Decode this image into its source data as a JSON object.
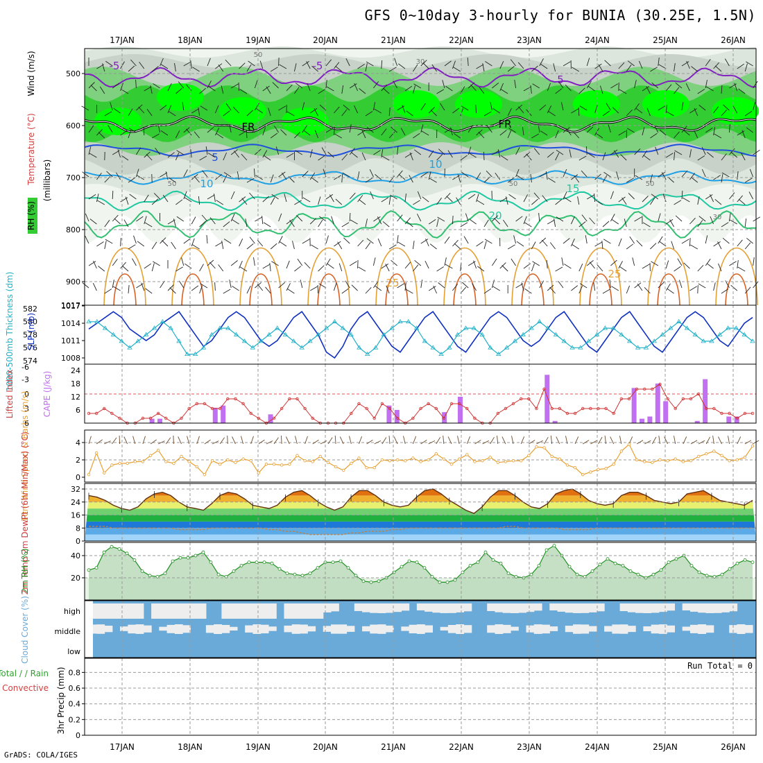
{
  "title": "GFS 0~10day 3-hourly for BUNIA (30.25E, 1.5N)",
  "credit": "GrADS: COLA/IGES",
  "run_total": "Run Total = 0",
  "colors": {
    "rh_green": "#33cc33",
    "rh_bright": "#00ff00",
    "rh_gray": "#c8d2c8",
    "temp_purple": "#8020c0",
    "temp_blue": "#1e50dc",
    "temp_cyan": "#1ea0e6",
    "temp_teal": "#1ec8a0",
    "temp_green": "#30c070",
    "temp_orange": "#e6a032",
    "slp_line": "#1030c0",
    "thickness_line": "#20b0c8",
    "cape_bar": "#c070f0",
    "lifted_line": "#d03030",
    "wind_line": "#e8a030",
    "rh2m_line": "#209020",
    "cloud_fill": "#6aaad8",
    "cloud_clear": "#eeeeee"
  },
  "chart_data": [
    {
      "type": "heatmap",
      "panel": "upper-air",
      "ylabel_parts": [
        "RH (%)",
        "Temperature (°C)",
        "Wind (m/s)",
        "(millibars)"
      ],
      "y_ticks": [
        "500",
        "600",
        "700",
        "800",
        "900",
        "1017"
      ],
      "x_dates": [
        "17JAN",
        "18JAN",
        "19JAN",
        "20JAN",
        "21JAN",
        "22JAN",
        "23JAN",
        "24JAN",
        "25JAN",
        "26JAN"
      ],
      "contour_labels": [
        "-5",
        "-5",
        "5",
        "FR",
        "FR",
        "5",
        "10",
        "10",
        "15",
        "20",
        "25",
        "25",
        "50",
        "50",
        "50",
        "30",
        "30",
        "50"
      ],
      "temperature_levels_mb": {
        "-5": [
          490,
          525
        ],
        "0": [
          590,
          605
        ],
        "5": [
          640,
          655
        ],
        "10": [
          690,
          710
        ],
        "15": [
          730,
          760
        ],
        "20": [
          780,
          800
        ],
        "25": [
          840,
          900
        ]
      }
    },
    {
      "type": "line",
      "panel": "slp-thickness",
      "ylabel_left": "1000-500mb Thickness (dm)",
      "ylabel_right": "SLP (mb)",
      "left_ticks": [
        "582",
        "580",
        "578",
        "576",
        "574"
      ],
      "right_ticks": [
        "1017",
        "1014",
        "1011",
        "1008"
      ],
      "series": [
        {
          "name": "SLP",
          "values": [
            1013,
            1014,
            1015,
            1016,
            1015,
            1013,
            1012,
            1011,
            1012,
            1014,
            1015,
            1016,
            1014,
            1012,
            1010,
            1011,
            1013,
            1015,
            1016,
            1015,
            1013,
            1011,
            1010,
            1011,
            1013,
            1015,
            1016,
            1014,
            1012,
            1009,
            1008,
            1010,
            1013,
            1015,
            1016,
            1014,
            1012,
            1010,
            1009,
            1011,
            1013,
            1015,
            1016,
            1014,
            1012,
            1010,
            1009,
            1011,
            1013,
            1015,
            1016,
            1015,
            1013,
            1011,
            1010,
            1011,
            1013,
            1015,
            1016,
            1014,
            1012,
            1010,
            1009,
            1011,
            1013,
            1015,
            1016,
            1014,
            1012,
            1010,
            1009,
            1011,
            1013,
            1015,
            1016,
            1015,
            1013,
            1011,
            1010,
            1012,
            1014,
            1015
          ]
        },
        {
          "name": "1000-500 Thickness",
          "values": [
            580,
            580,
            579,
            578,
            577,
            576,
            577,
            578,
            579,
            580,
            579,
            577,
            575,
            575,
            576,
            578,
            579,
            579,
            578,
            577,
            576,
            577,
            578,
            579,
            578,
            577,
            576,
            577,
            578,
            579,
            580,
            579,
            578,
            576,
            575,
            576,
            578,
            579,
            580,
            580,
            579,
            577,
            576,
            575,
            576,
            578,
            579,
            579,
            578,
            576,
            575,
            576,
            577,
            578,
            579,
            580,
            579,
            578,
            577,
            576,
            576,
            577,
            578,
            579,
            579,
            578,
            577,
            576,
            576,
            577,
            578,
            579,
            580,
            579,
            578,
            577,
            577,
            578,
            579,
            579,
            578,
            577
          ]
        }
      ]
    },
    {
      "type": "bar",
      "panel": "cape-lifted",
      "ylabel_left": "Lifted Index",
      "ylabel_right": "CAPE (J/kg)",
      "cape_ticks": [
        "24",
        "18",
        "12",
        "6"
      ],
      "li_ticks": [
        "-6",
        "-3",
        "0",
        "3",
        "6"
      ],
      "cape_values": [
        0,
        0,
        0,
        0,
        0,
        0,
        0,
        0,
        2,
        2,
        0,
        0,
        0,
        0,
        0,
        0,
        7,
        8,
        0,
        0,
        0,
        0,
        0,
        4,
        0,
        0,
        0,
        0,
        0,
        0,
        0,
        0,
        0,
        0,
        0,
        0,
        0,
        0,
        8,
        6,
        0,
        0,
        0,
        0,
        0,
        5,
        0,
        12,
        0,
        0,
        0,
        0,
        0,
        0,
        0,
        0,
        0,
        0,
        22,
        1,
        0,
        0,
        0,
        0,
        0,
        0,
        0,
        0,
        0,
        16,
        2,
        3,
        18,
        10,
        0,
        0,
        0,
        1,
        20,
        0,
        0,
        3,
        3,
        0,
        0
      ],
      "lifted_index_values": [
        4,
        4,
        3,
        4,
        5,
        6,
        6,
        5,
        5,
        4,
        5,
        6,
        5,
        3,
        2,
        2,
        3,
        3,
        1,
        1,
        2,
        4,
        5,
        6,
        5,
        3,
        1,
        1,
        3,
        5,
        6,
        6,
        6,
        6,
        4,
        2,
        3,
        5,
        2,
        3,
        5,
        6,
        5,
        3,
        2,
        3,
        5,
        2,
        2,
        3,
        5,
        6,
        6,
        4,
        3,
        2,
        1,
        1,
        3,
        -1,
        3,
        3,
        4,
        4,
        3,
        3,
        3,
        3,
        4,
        1,
        1,
        -1,
        -1,
        -1,
        -2,
        1,
        3,
        1,
        1,
        0,
        3,
        3,
        4,
        4,
        5,
        4,
        4
      ]
    },
    {
      "type": "line",
      "panel": "wind10m",
      "ylabel": "10m Wind Speed & Barbs (m/s)",
      "y_ticks": [
        "4",
        "2",
        "0"
      ],
      "values": [
        0.3,
        2.8,
        0.5,
        1.4,
        1.6,
        1.6,
        1.8,
        1.8,
        2.5,
        3.1,
        1.8,
        1.6,
        2.4,
        1.8,
        1.2,
        0.3,
        1.9,
        1.5,
        2.0,
        1.7,
        2.1,
        1.9,
        0.5,
        1.5,
        1.5,
        1.4,
        1.5,
        2.5,
        1.9,
        1.8,
        2.4,
        1.7,
        1.2,
        0.8,
        1.6,
        2.2,
        1.1,
        1.1,
        2.0,
        1.9,
        2.0,
        1.9,
        2.2,
        1.8,
        2.0,
        2.7,
        2.1,
        1.5,
        2.1,
        2.6,
        1.8,
        1.9,
        2.3,
        1.7,
        1.8,
        1.9,
        1.9,
        2.5,
        3.5,
        3.4,
        2.4,
        2.1,
        1.4,
        1.1,
        0.3,
        0.6,
        0.9,
        1.0,
        1.5,
        3.0,
        3.8,
        2.0,
        1.8,
        1.7,
        2.0,
        1.9,
        2.1,
        1.8,
        1.9,
        2.4,
        2.7,
        3.0,
        2.5,
        1.9,
        2.0,
        2.3,
        3.6
      ]
    },
    {
      "type": "area",
      "panel": "temp2m",
      "ylabel": "2m Temp 2m DewPt (6hr Min/Max) (°C)",
      "y_ticks": [
        "32",
        "24",
        "16",
        "8",
        "0"
      ],
      "series": [
        {
          "name": "Temp",
          "values": [
            28,
            27,
            25,
            22,
            20,
            19,
            21,
            26,
            29,
            30,
            28,
            24,
            21,
            20,
            19,
            23,
            28,
            30,
            29,
            26,
            22,
            21,
            20,
            22,
            27,
            30,
            31,
            28,
            24,
            21,
            19,
            21,
            27,
            31,
            31,
            28,
            24,
            22,
            21,
            22,
            27,
            31,
            32,
            29,
            25,
            22,
            19,
            17,
            21,
            27,
            31,
            31,
            28,
            24,
            21,
            20,
            23,
            29,
            31,
            32,
            29,
            25,
            23,
            22,
            23,
            28,
            30,
            30,
            28,
            25,
            24,
            23,
            24,
            29,
            30,
            31,
            28,
            25,
            24,
            23,
            22,
            25
          ]
        },
        {
          "name": "DewPt",
          "values": [
            9,
            9,
            9,
            8,
            8,
            8,
            8,
            8,
            8,
            8,
            8,
            7,
            7,
            7,
            7,
            8,
            8,
            8,
            8,
            8,
            8,
            8,
            7,
            7,
            6,
            6,
            5,
            4,
            4,
            4,
            4,
            4,
            5,
            5,
            6,
            6,
            6,
            7,
            7,
            8,
            8,
            8,
            8,
            8,
            8,
            8,
            8,
            8,
            8,
            8,
            8,
            9,
            9,
            8,
            8,
            8,
            8,
            8,
            7,
            7,
            7,
            7,
            8,
            8,
            8,
            8,
            8,
            8,
            8,
            8,
            8,
            8,
            8,
            8,
            8,
            8,
            8,
            8,
            8,
            8,
            8,
            8
          ]
        }
      ]
    },
    {
      "type": "area",
      "panel": "rh2m",
      "ylabel": "2m RH (%)",
      "y_ticks": [
        "40",
        "20"
      ],
      "values": [
        27,
        29,
        43,
        48,
        46,
        42,
        36,
        26,
        22,
        21,
        24,
        35,
        38,
        38,
        40,
        43,
        34,
        23,
        21,
        26,
        31,
        34,
        34,
        34,
        33,
        28,
        24,
        23,
        22,
        24,
        29,
        34,
        34,
        35,
        29,
        22,
        17,
        16,
        17,
        20,
        25,
        30,
        35,
        34,
        29,
        21,
        16,
        16,
        18,
        25,
        31,
        34,
        43,
        36,
        33,
        24,
        21,
        20,
        23,
        31,
        45,
        49,
        40,
        30,
        23,
        21,
        26,
        32,
        37,
        33,
        31,
        26,
        23,
        20,
        23,
        27,
        34,
        37,
        40,
        31,
        25,
        22,
        21,
        23,
        28,
        33,
        36,
        34
      ]
    },
    {
      "type": "heatmap",
      "panel": "cloud",
      "ylabel": "Cloud Cover (%)",
      "y_categories": [
        "high",
        "middle",
        "low"
      ]
    },
    {
      "type": "bar",
      "panel": "precip",
      "ylabel_left": "Total / Rain Convective",
      "ylabel_right": "3hr Precip (mm)",
      "y_ticks": [
        "0.8",
        "0.6",
        "0.4",
        "0.2",
        "0"
      ],
      "values": [
        0
      ]
    }
  ]
}
